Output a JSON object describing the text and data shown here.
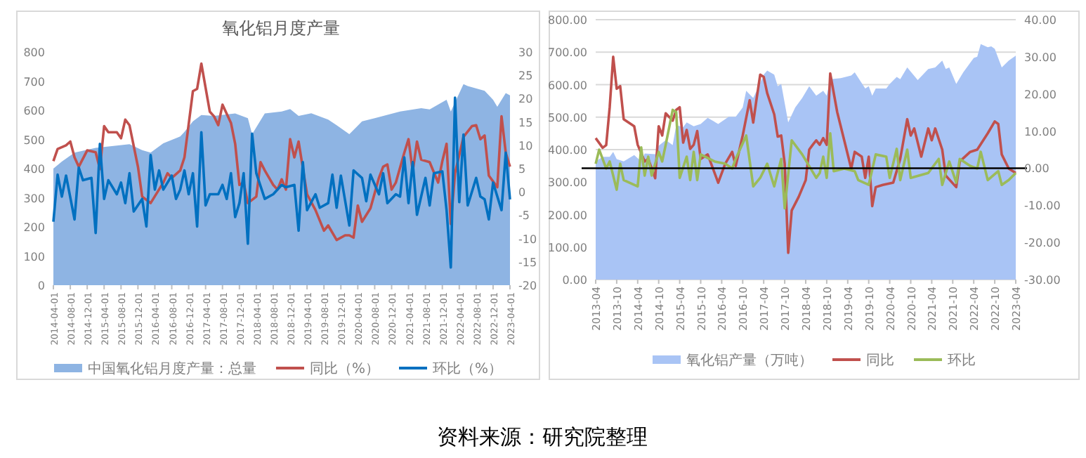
{
  "chart_data": [
    {
      "type": "area",
      "title": "氧化铝月度产量",
      "xlim": [
        "2014-04",
        "2023-04"
      ],
      "ylim": [
        0,
        800
      ],
      "yticks": [
        0,
        100,
        200,
        300,
        400,
        500,
        600,
        700,
        800
      ],
      "y2lim": [
        -20,
        30
      ],
      "y2ticks": [
        -20,
        -15,
        -10,
        -5,
        0,
        5,
        10,
        15,
        20,
        25,
        30
      ],
      "xticks": [
        "2014-04-01",
        "2014-08-01",
        "2014-12-01",
        "2015-04-01",
        "2015-08-01",
        "2015-12-01",
        "2016-04-01",
        "2016-08-01",
        "2016-12-01",
        "2017-04-01",
        "2017-08-01",
        "2017-12-01",
        "2018-04-01",
        "2018-08-01",
        "2018-12-01",
        "2019-04-01",
        "2019-08-01",
        "2019-12-01",
        "2020-04-01",
        "2020-08-01",
        "2020-12-01",
        "2021-04-01",
        "2021-08-01",
        "2021-12-01",
        "2022-04-01",
        "2022-08-01",
        "2022-12-01",
        "2023-04-01"
      ],
      "grid": false,
      "legend": "bottom",
      "series": [
        {
          "name": "中国氧化铝月度产量：总量",
          "color": "#8eb4e3",
          "x": [
            "2014-04",
            "2014-06",
            "2014-09",
            "2015-02",
            "2015-07",
            "2015-10",
            "2016-01",
            "2016-03",
            "2016-06",
            "2016-10",
            "2016-11",
            "2017-01",
            "2017-03",
            "2017-06",
            "2017-11",
            "2018-02",
            "2018-03",
            "2018-06",
            "2018-10",
            "2018-12",
            "2019-02",
            "2019-05",
            "2019-09",
            "2019-11",
            "2020-02",
            "2020-05",
            "2020-08",
            "2021-02",
            "2021-07",
            "2021-09",
            "2022-01",
            "2022-02",
            "2022-05",
            "2022-06",
            "2022-10",
            "2022-12",
            "2023-01",
            "2023-03",
            "2023-04"
          ],
          "values": [
            400,
            424,
            455,
            471,
            479,
            484,
            463,
            455,
            487,
            510,
            526,
            562,
            584,
            581,
            589,
            573,
            518,
            589,
            596,
            604,
            581,
            590,
            568,
            549,
            518,
            562,
            573,
            596,
            607,
            603,
            636,
            596,
            690,
            683,
            667,
            636,
            612,
            659,
            651
          ]
        },
        {
          "name": "同比（%）",
          "type": "line",
          "axis": "y2",
          "color": "#c0504d",
          "x": [
            "2014-04",
            "2014-05",
            "2014-07",
            "2014-08",
            "2014-09",
            "2014-10",
            "2014-12",
            "2015-02",
            "2015-03",
            "2015-04",
            "2015-05",
            "2015-07",
            "2015-08",
            "2015-09",
            "2015-10",
            "2015-12",
            "2016-01",
            "2016-03",
            "2016-06",
            "2016-07",
            "2016-08",
            "2016-10",
            "2016-11",
            "2017-01",
            "2017-02",
            "2017-03",
            "2017-05",
            "2017-06",
            "2017-07",
            "2017-08",
            "2017-10",
            "2017-11",
            "2017-12",
            "2018-01",
            "2018-02",
            "2018-04",
            "2018-05",
            "2018-06",
            "2018-08",
            "2018-09",
            "2018-10",
            "2018-11",
            "2018-12",
            "2019-01",
            "2019-02",
            "2019-04",
            "2019-06",
            "2019-08",
            "2019-09",
            "2019-11",
            "2020-01",
            "2020-02",
            "2020-03",
            "2020-04",
            "2020-05",
            "2020-07",
            "2020-09",
            "2020-10",
            "2020-11",
            "2020-12",
            "2021-01",
            "2021-03",
            "2021-04",
            "2021-05",
            "2021-06",
            "2021-07",
            "2021-09",
            "2021-11",
            "2021-12",
            "2022-01",
            "2022-02",
            "2022-03",
            "2022-05",
            "2022-07",
            "2022-08",
            "2022-09",
            "2022-10",
            "2022-11",
            "2023-01",
            "2023-02",
            "2023-03",
            "2023-04"
          ],
          "values": [
            6.6,
            9.2,
            10,
            10.8,
            7.4,
            5.4,
            8.9,
            8.5,
            4.9,
            14.1,
            12.8,
            12.8,
            11.5,
            15.5,
            14.3,
            5.4,
            -1.0,
            -2.4,
            2.0,
            4.0,
            3.0,
            4.6,
            7.4,
            21.6,
            22.1,
            27.5,
            17.2,
            16.2,
            14.3,
            18.7,
            14.8,
            10.3,
            1.5,
            2.0,
            -2.4,
            -1.0,
            6.4,
            4.6,
            1.5,
            0.5,
            2.7,
            0.5,
            11.3,
            7.4,
            10.8,
            -0.5,
            -3.9,
            -8.3,
            -7.2,
            -10.3,
            -9.3,
            -9.3,
            -9.8,
            -2.9,
            -6.4,
            -3.5,
            3.0,
            5.4,
            5.9,
            0.5,
            2.0,
            8.4,
            11.3,
            4.4,
            10.8,
            6.9,
            6.4,
            2.0,
            6.6,
            10.3,
            -6.9,
            4.0,
            11.8,
            14.1,
            14.3,
            11.3,
            12.1,
            3.5,
            1.0,
            16.2,
            8.4,
            5.4
          ]
        },
        {
          "name": "环比（%）",
          "type": "line",
          "axis": "y2",
          "color": "#0070c0",
          "x": [
            "2014-04",
            "2014-05",
            "2014-06",
            "2014-07",
            "2014-09",
            "2014-10",
            "2014-11",
            "2015-01",
            "2015-02",
            "2015-03",
            "2015-04",
            "2015-05",
            "2015-07",
            "2015-08",
            "2015-09",
            "2015-10",
            "2015-11",
            "2016-01",
            "2016-02",
            "2016-03",
            "2016-04",
            "2016-05",
            "2016-06",
            "2016-08",
            "2016-09",
            "2016-10",
            "2016-11",
            "2016-12",
            "2017-01",
            "2017-02",
            "2017-03",
            "2017-04",
            "2017-05",
            "2017-07",
            "2017-08",
            "2017-09",
            "2017-10",
            "2017-11",
            "2017-12",
            "2018-01",
            "2018-02",
            "2018-03",
            "2018-04",
            "2018-06",
            "2018-08",
            "2018-10",
            "2018-11",
            "2019-01",
            "2019-02",
            "2019-03",
            "2019-04",
            "2019-06",
            "2019-07",
            "2019-09",
            "2019-10",
            "2019-11",
            "2019-12",
            "2020-02",
            "2020-03",
            "2020-05",
            "2020-06",
            "2020-07",
            "2020-09",
            "2020-10",
            "2020-11",
            "2021-01",
            "2021-02",
            "2021-03",
            "2021-04",
            "2021-05",
            "2021-06",
            "2021-08",
            "2021-09",
            "2021-10",
            "2021-12",
            "2022-01",
            "2022-02",
            "2022-03",
            "2022-04",
            "2022-05",
            "2022-06",
            "2022-08",
            "2022-09",
            "2022-10",
            "2022-11",
            "2022-12",
            "2023-02",
            "2023-03",
            "2023-04"
          ],
          "values": [
            -6.4,
            3.7,
            -1.0,
            3.5,
            -5.9,
            5.2,
            2.5,
            3.0,
            -8.8,
            10.3,
            -1.5,
            2.5,
            -0.5,
            2.0,
            -2.4,
            4.0,
            -4.2,
            -1.5,
            -7.4,
            7.9,
            0.5,
            4.6,
            0.5,
            3.5,
            -1.5,
            0.5,
            4.6,
            -0.5,
            4.0,
            -7.4,
            12.8,
            -2.9,
            -0.5,
            -0.5,
            1.5,
            -1.5,
            4.0,
            -5.4,
            -2.4,
            4.0,
            -11.1,
            12.5,
            4.0,
            -1.5,
            -0.5,
            1.5,
            1.0,
            1.5,
            -8.3,
            6.4,
            -3.9,
            -0.5,
            -3.4,
            -2.4,
            3.7,
            -3.4,
            3.5,
            -7.2,
            4.6,
            3.0,
            -2.0,
            3.7,
            -0.5,
            4.0,
            -2.4,
            -0.5,
            -1.0,
            7.4,
            -2.4,
            6.4,
            -4.9,
            3.0,
            -2.9,
            4.0,
            4.4,
            -3.9,
            -16.2,
            20.2,
            -2.2,
            12.3,
            -2.9,
            3.0,
            -1.0,
            -1.6,
            -5.9,
            2.0,
            -3.9,
            8.4,
            -1.6
          ]
        }
      ]
    },
    {
      "type": "area",
      "xlim": [
        "2013-04",
        "2023-04"
      ],
      "ylim": [
        0,
        800
      ],
      "yticks": [
        {
          "value": 0,
          "label": "0.00"
        },
        {
          "value": 100,
          "label": "100.00"
        },
        {
          "value": 200,
          "label": "200.00"
        },
        {
          "value": 300,
          "label": "300.00"
        },
        {
          "value": 400,
          "label": "400.00"
        },
        {
          "value": 500,
          "label": "500.00"
        },
        {
          "value": 600,
          "label": "600.00"
        },
        {
          "value": 700,
          "label": "700.00"
        },
        {
          "value": 800,
          "label": "800.00"
        }
      ],
      "y2lim": [
        -30,
        40
      ],
      "y2ticks": [
        {
          "value": -30,
          "label": "-30.00"
        },
        {
          "value": -20,
          "label": "-20.00"
        },
        {
          "value": -10,
          "label": "-10.00"
        },
        {
          "value": 0,
          "label": "0.00"
        },
        {
          "value": 10,
          "label": "10.00"
        },
        {
          "value": 20,
          "label": "20.00"
        },
        {
          "value": 30,
          "label": "30.00"
        },
        {
          "value": 40,
          "label": "40.00"
        }
      ],
      "xticks": [
        "2013-04",
        "2013-10",
        "2014-04",
        "2014-10",
        "2015-04",
        "2015-10",
        "2016-04",
        "2016-10",
        "2017-04",
        "2017-10",
        "2018-04",
        "2018-10",
        "2019-04",
        "2019-10",
        "2020-04",
        "2020-10",
        "2021-04",
        "2021-10",
        "2022-04",
        "2022-10",
        "2023-04"
      ],
      "grid": "y",
      "legend": "bottom",
      "ref_lines": [
        {
          "axis": "y2",
          "value": 0,
          "color": "#000000"
        }
      ],
      "annotations": [
        "资料来源：研究院整理"
      ],
      "series": [
        {
          "name": "氧化铝产量（万吨）",
          "color": "#a9c4f5",
          "x": [
            "2013-04",
            "2013-06",
            "2013-08",
            "2013-09",
            "2013-10",
            "2013-12",
            "2014-03",
            "2014-05",
            "2014-06",
            "2014-09",
            "2014-10",
            "2014-12",
            "2015-02",
            "2015-03",
            "2015-05",
            "2015-06",
            "2015-08",
            "2015-10",
            "2015-12",
            "2016-03",
            "2016-06",
            "2016-08",
            "2016-10",
            "2016-11",
            "2017-01",
            "2017-02",
            "2017-04",
            "2017-05",
            "2017-07",
            "2017-08",
            "2017-09",
            "2017-11",
            "2018-01",
            "2018-03",
            "2018-05",
            "2018-07",
            "2018-09",
            "2018-10",
            "2018-11",
            "2019-02",
            "2019-05",
            "2019-06",
            "2019-09",
            "2019-10",
            "2019-11",
            "2019-12",
            "2020-03",
            "2020-04",
            "2020-06",
            "2020-07",
            "2020-09",
            "2020-12",
            "2021-03",
            "2021-05",
            "2021-07",
            "2021-08",
            "2021-09",
            "2021-11",
            "2022-01",
            "2022-04",
            "2022-05",
            "2022-06",
            "2022-08",
            "2022-09",
            "2022-10",
            "2022-12",
            "2023-02",
            "2023-04"
          ],
          "values": [
            364,
            378,
            378,
            393,
            371,
            364,
            383,
            364,
            388,
            386,
            412,
            429,
            414,
            475,
            469,
            484,
            472,
            479,
            498,
            479,
            501,
            501,
            530,
            581,
            559,
            581,
            631,
            643,
            631,
            595,
            602,
            484,
            530,
            559,
            595,
            566,
            581,
            566,
            617,
            620,
            628,
            638,
            588,
            595,
            566,
            588,
            588,
            602,
            624,
            617,
            653,
            614,
            648,
            653,
            674,
            648,
            653,
            602,
            638,
            682,
            686,
            725,
            715,
            718,
            710,
            653,
            674,
            689
          ]
        },
        {
          "name": "同比",
          "type": "line",
          "axis": "y2",
          "color": "#c0504d",
          "x": [
            "2013-04",
            "2013-06",
            "2013-07",
            "2013-08",
            "2013-09",
            "2013-10",
            "2013-11",
            "2013-12",
            "2014-03",
            "2014-04",
            "2014-06",
            "2014-07",
            "2014-09",
            "2014-10",
            "2014-11",
            "2014-12",
            "2015-02",
            "2015-03",
            "2015-04",
            "2015-05",
            "2015-06",
            "2015-07",
            "2015-08",
            "2015-09",
            "2015-10",
            "2015-12",
            "2016-03",
            "2016-05",
            "2016-07",
            "2016-08",
            "2016-10",
            "2016-12",
            "2017-01",
            "2017-02",
            "2017-03",
            "2017-04",
            "2017-05",
            "2017-07",
            "2017-08",
            "2017-09",
            "2017-10",
            "2017-11",
            "2017-12",
            "2018-02",
            "2018-04",
            "2018-05",
            "2018-06",
            "2018-07",
            "2018-08",
            "2018-09",
            "2018-10",
            "2018-11",
            "2019-01",
            "2019-03",
            "2019-05",
            "2019-06",
            "2019-08",
            "2019-09",
            "2019-10",
            "2019-11",
            "2019-12",
            "2020-02",
            "2020-05",
            "2020-07",
            "2020-09",
            "2020-10",
            "2020-11",
            "2021-01",
            "2021-03",
            "2021-04",
            "2021-05",
            "2021-07",
            "2021-08",
            "2021-11",
            "2021-12",
            "2022-03",
            "2022-05",
            "2022-08",
            "2022-10",
            "2022-11",
            "2022-12",
            "2023-02",
            "2023-04"
          ],
          "values": [
            8.1,
            5.5,
            6.2,
            16.4,
            30.0,
            21.4,
            22.1,
            13.2,
            11.3,
            6.3,
            1.8,
            2.5,
            -2.7,
            11.3,
            8.8,
            14.8,
            12.8,
            15.7,
            16.4,
            6.9,
            10.3,
            5.2,
            6.3,
            10.0,
            2.5,
            3.7,
            -3.9,
            1.2,
            4.4,
            0.6,
            8.8,
            18.3,
            12.3,
            18.9,
            25.2,
            24.6,
            20.2,
            14.5,
            8.5,
            8.8,
            1.2,
            -22.8,
            -11.4,
            -7.7,
            -3.2,
            5.0,
            6.3,
            7.5,
            6.3,
            8.1,
            6.3,
            25.5,
            15.1,
            7.5,
            -0.1,
            4.4,
            3.1,
            -2.6,
            3.1,
            -10.2,
            -5.1,
            -4.5,
            -3.9,
            2.5,
            13.2,
            8.8,
            10.7,
            3.1,
            10.7,
            7.5,
            10.7,
            5.0,
            -2.0,
            -5.1,
            1.8,
            4.4,
            5.0,
            9.4,
            12.6,
            11.9,
            3.7,
            -0.1,
            -1.3
          ]
        },
        {
          "name": "环比",
          "type": "line",
          "axis": "y2",
          "color": "#9bbb59",
          "x": [
            "2013-04",
            "2013-05",
            "2013-07",
            "2013-08",
            "2013-10",
            "2013-11",
            "2013-12",
            "2014-04",
            "2014-05",
            "2014-06",
            "2014-07",
            "2014-08",
            "2014-10",
            "2014-11",
            "2014-12",
            "2015-02",
            "2015-03",
            "2015-04",
            "2015-06",
            "2015-07",
            "2015-08",
            "2015-09",
            "2015-10",
            "2016-02",
            "2016-05",
            "2016-07",
            "2016-08",
            "2016-11",
            "2017-01",
            "2017-03",
            "2017-05",
            "2017-07",
            "2017-09",
            "2017-10",
            "2017-12",
            "2018-03",
            "2018-07",
            "2018-08",
            "2018-09",
            "2018-10",
            "2018-11",
            "2018-12",
            "2019-03",
            "2019-06",
            "2019-07",
            "2019-10",
            "2019-12",
            "2020-03",
            "2020-04",
            "2020-06",
            "2020-07",
            "2020-09",
            "2020-10",
            "2021-03",
            "2021-06",
            "2021-07",
            "2021-09",
            "2021-11",
            "2021-12",
            "2022-03",
            "2022-05",
            "2022-06",
            "2022-08",
            "2022-11",
            "2022-12",
            "2023-02",
            "2023-04"
          ],
          "values": [
            1.2,
            5.0,
            -0.1,
            1.8,
            -5.8,
            1.2,
            -3.2,
            -4.9,
            5.6,
            -2.0,
            3.1,
            -2.0,
            4.4,
            1.8,
            6.3,
            15.7,
            15.1,
            -2.6,
            3.1,
            -3.2,
            4.4,
            -3.2,
            3.7,
            1.8,
            1.2,
            -0.1,
            2.5,
            8.8,
            -4.9,
            -2.6,
            1.2,
            -4.9,
            2.5,
            -10.8,
            7.5,
            3.7,
            -2.6,
            -1.3,
            3.1,
            -2.6,
            9.4,
            -0.8,
            -0.1,
            -0.8,
            -3.2,
            -4.5,
            3.7,
            3.1,
            -2.6,
            5.2,
            -3.2,
            5.0,
            -2.6,
            -1.3,
            2.5,
            -4.5,
            1.8,
            -3.9,
            2.5,
            0.6,
            -0.1,
            4.4,
            -3.2,
            -0.8,
            -4.5,
            -3.2,
            -1.3
          ]
        }
      ]
    }
  ]
}
